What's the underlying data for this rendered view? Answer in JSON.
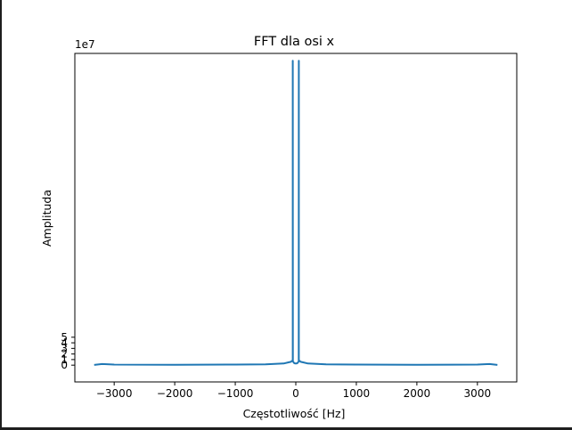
{
  "chart_data": {
    "type": "line",
    "title": "FFT dla osi x",
    "xlabel": "Częstotliwość [Hz]",
    "ylabel": "Amplituda",
    "y_offset_label": "1e7",
    "xlim": [
      -3650,
      3650
    ],
    "ylim": [
      -3.0,
      55.8
    ],
    "y_scale_factor": 10000000,
    "xticks": [
      -3000,
      -2000,
      -1000,
      0,
      1000,
      2000,
      3000
    ],
    "xtick_labels": [
      "−3000",
      "−2000",
      "−1000",
      "0",
      "1000",
      "2000",
      "3000"
    ],
    "yticks": [
      0,
      1,
      2,
      3,
      4,
      5
    ],
    "ytick_labels": [
      "0",
      "1",
      "2",
      "3",
      "4",
      "5"
    ],
    "grid": false,
    "color": "#1f77b4",
    "series": [
      {
        "x": [
          -3330,
          -3200,
          -3000,
          -2000,
          -1000,
          -500,
          -200,
          -120,
          -80,
          -50,
          -50,
          -48,
          -30,
          -10,
          10,
          30,
          48,
          50,
          50,
          80,
          120,
          200,
          500,
          1000,
          2000,
          3000,
          3200,
          3330
        ],
        "y": [
          0.05,
          0.2,
          0.1,
          0.08,
          0.1,
          0.15,
          0.3,
          0.5,
          0.6,
          0.9,
          54.5,
          0.7,
          0.4,
          0.3,
          0.3,
          0.4,
          0.7,
          54.5,
          0.9,
          0.6,
          0.5,
          0.3,
          0.15,
          0.1,
          0.08,
          0.1,
          0.2,
          0.05
        ]
      }
    ]
  }
}
